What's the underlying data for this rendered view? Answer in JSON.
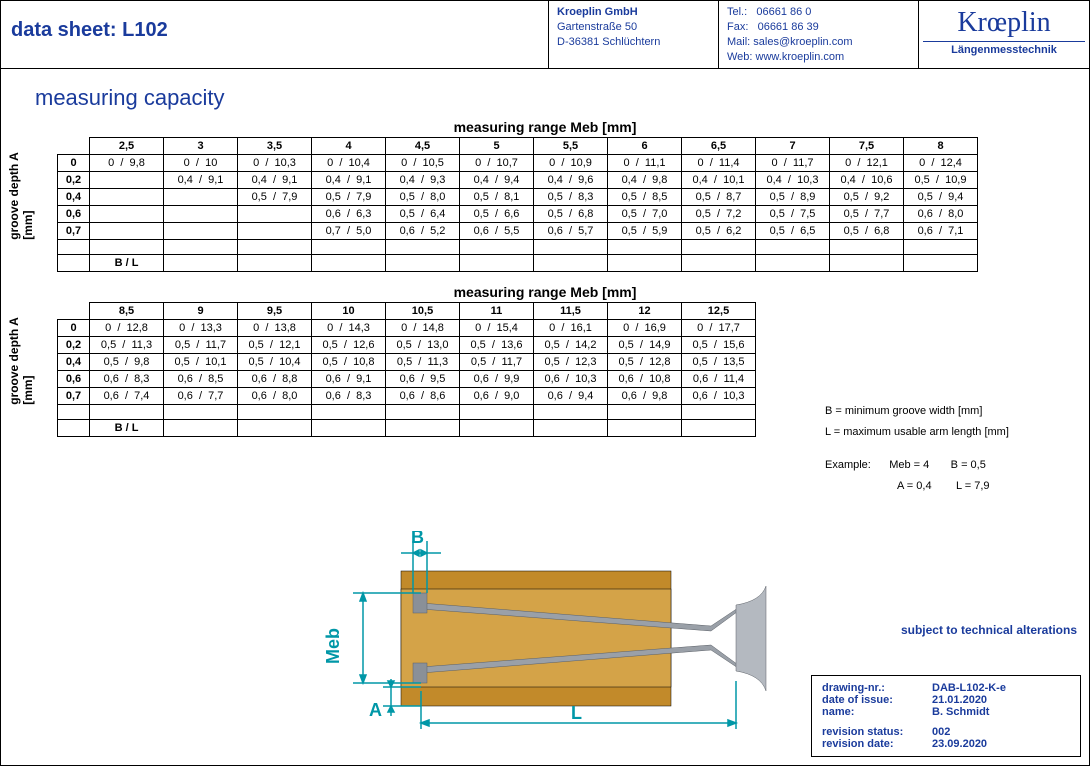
{
  "header": {
    "title": "data sheet:  L102",
    "company": "Kroeplin GmbH",
    "street": "Gartenstraße 50",
    "city": "D-36381 Schlüchtern",
    "tel_l": "Tel.:",
    "tel": "06661 86 0",
    "fax_l": "Fax:",
    "fax": "06661 86 39",
    "mail_l": "Mail:",
    "mail": "sales@kroeplin.com",
    "web_l": "Web:",
    "web": "www.kroeplin.com",
    "brand": "Krœplin",
    "brand_sub": "Längenmesstechnik"
  },
  "section_title": "measuring capacity",
  "table_caption": "measuring range Meb [mm]",
  "y_axis_label": "groove depth A\n[mm]",
  "row_heads": [
    "0",
    "0,2",
    "0,4",
    "0,6",
    "0,7"
  ],
  "bl_label": "B / L",
  "t1": {
    "cols": [
      "2,5",
      "3",
      "3,5",
      "4",
      "4,5",
      "5",
      "5,5",
      "6",
      "6,5",
      "7",
      "7,5",
      "8"
    ],
    "rows": [
      [
        "0 / 9,8",
        "0 / 10",
        "0 / 10,3",
        "0 / 10,4",
        "0 / 10,5",
        "0 / 10,7",
        "0 / 10,9",
        "0 / 11,1",
        "0 / 11,4",
        "0 / 11,7",
        "0 / 12,1",
        "0 / 12,4"
      ],
      [
        "",
        "0,4 / 9,1",
        "0,4 / 9,1",
        "0,4 / 9,1",
        "0,4 / 9,3",
        "0,4 / 9,4",
        "0,4 / 9,6",
        "0,4 / 9,8",
        "0,4 / 10,1",
        "0,4 / 10,3",
        "0,4 / 10,6",
        "0,5 / 10,9"
      ],
      [
        "",
        "",
        "0,5 / 7,9",
        "0,5 / 7,9",
        "0,5 / 8,0",
        "0,5 / 8,1",
        "0,5 / 8,3",
        "0,5 / 8,5",
        "0,5 / 8,7",
        "0,5 / 8,9",
        "0,5 / 9,2",
        "0,5 / 9,4"
      ],
      [
        "",
        "",
        "",
        "0,6 / 6,3",
        "0,5 / 6,4",
        "0,5 / 6,6",
        "0,5 / 6,8",
        "0,5 / 7,0",
        "0,5 / 7,2",
        "0,5 / 7,5",
        "0,5 / 7,7",
        "0,6 / 8,0"
      ],
      [
        "",
        "",
        "",
        "0,7 / 5,0",
        "0,6 / 5,2",
        "0,6 / 5,5",
        "0,6 / 5,7",
        "0,5 / 5,9",
        "0,5 / 6,2",
        "0,5 / 6,5",
        "0,5 / 6,8",
        "0,6 / 7,1"
      ]
    ]
  },
  "t2": {
    "cols": [
      "8,5",
      "9",
      "9,5",
      "10",
      "10,5",
      "11",
      "11,5",
      "12",
      "12,5"
    ],
    "rows": [
      [
        "0 / 12,8",
        "0 / 13,3",
        "0 / 13,8",
        "0 / 14,3",
        "0 / 14,8",
        "0 / 15,4",
        "0 / 16,1",
        "0 / 16,9",
        "0 / 17,7"
      ],
      [
        "0,5 / 11,3",
        "0,5 / 11,7",
        "0,5 / 12,1",
        "0,5 / 12,6",
        "0,5 / 13,0",
        "0,5 / 13,6",
        "0,5 / 14,2",
        "0,5 / 14,9",
        "0,5 / 15,6"
      ],
      [
        "0,5 / 9,8",
        "0,5 / 10,1",
        "0,5 / 10,4",
        "0,5 / 10,8",
        "0,5 / 11,3",
        "0,5 / 11,7",
        "0,5 / 12,3",
        "0,5 / 12,8",
        "0,5 / 13,5"
      ],
      [
        "0,6 / 8,3",
        "0,6 / 8,5",
        "0,6 / 8,8",
        "0,6 / 9,1",
        "0,6 / 9,5",
        "0,6 / 9,9",
        "0,6 / 10,3",
        "0,6 / 10,8",
        "0,6 / 11,4"
      ],
      [
        "0,6 / 7,4",
        "0,6 / 7,7",
        "0,6 / 8,0",
        "0,6 / 8,3",
        "0,6 / 8,6",
        "0,6 / 9,0",
        "0,6 / 9,4",
        "0,6 / 9,8",
        "0,6 / 10,3"
      ]
    ]
  },
  "notes": {
    "b": "B = minimum groove width [mm]",
    "l": "L = maximum usable arm length [mm]",
    "ex_l": "Example:",
    "ex1a": "Meb = 4",
    "ex1b": "B = 0,5",
    "ex2a": "A = 0,4",
    "ex2b": "L = 7,9"
  },
  "diagram": {
    "labels": {
      "B": "B",
      "Meb": "Meb",
      "A": "A",
      "L": "L"
    },
    "colors": {
      "dim": "#0097a7",
      "block": "#c28a2a",
      "block2": "#a87820",
      "probe": "#9aa0a8",
      "probe_dk": "#6d737a"
    }
  },
  "alter": "subject to technical alterations",
  "meta": {
    "k1": "drawing-nr.:",
    "v1": "DAB-L102-K-e",
    "k2": "date of issue:",
    "v2": "21.01.2020",
    "k3": "name:",
    "v3": "B. Schmidt",
    "k4": "revision status:",
    "v4": "002",
    "k5": "revision date:",
    "v5": "23.09.2020"
  }
}
